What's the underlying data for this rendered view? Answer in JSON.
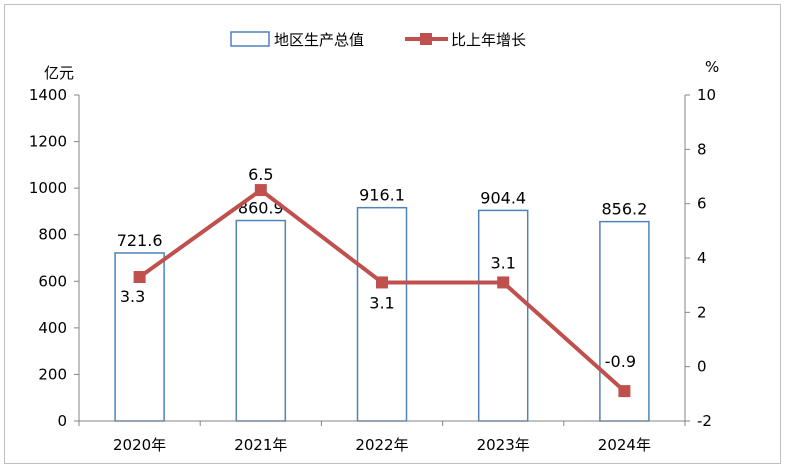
{
  "chart_data": {
    "type": "bar",
    "categories": [
      "2020年",
      "2021年",
      "2022年",
      "2023年",
      "2024年"
    ],
    "series": [
      {
        "name": "地区生产总值",
        "type": "bar",
        "axis": "left",
        "values": [
          721.6,
          860.9,
          916.1,
          904.4,
          856.2
        ]
      },
      {
        "name": "比上年增长",
        "type": "line",
        "axis": "right",
        "values": [
          3.3,
          6.5,
          3.1,
          3.1,
          -0.9
        ]
      }
    ],
    "left_axis": {
      "unit": "亿元",
      "ylim": [
        0,
        1400
      ],
      "ticks": [
        0,
        200,
        400,
        600,
        800,
        1000,
        1200,
        1400
      ]
    },
    "right_axis": {
      "unit": "%",
      "ylim": [
        -2,
        10
      ],
      "ticks": [
        -2,
        0,
        2,
        4,
        6,
        8,
        10
      ]
    },
    "bar_labels": [
      "721.6",
      "860.9",
      "916.1",
      "904.4",
      "856.2"
    ],
    "line_labels": [
      "3.3",
      "6.5",
      "3.1",
      "3.1",
      "-0.9"
    ],
    "legend_position": "top",
    "grid": false,
    "colors": {
      "bar_border": "#4f81bd",
      "bar_fill": "#ffffff",
      "line": "#c0504d",
      "marker": "#c0504d",
      "axis": "#868686"
    }
  }
}
